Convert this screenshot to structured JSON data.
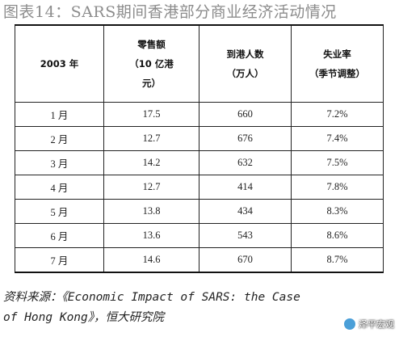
{
  "title": "图表14：SARS期间香港部分商业经济活动情况",
  "table": {
    "headers": {
      "col1": "2003 年",
      "col2": [
        "零售额",
        "（10 亿港",
        "元）"
      ],
      "col3": [
        "到港人数",
        "（万人）"
      ],
      "col4": [
        "失业率",
        "（季节调整）"
      ]
    },
    "rows": [
      {
        "month": "1 月",
        "retail": "17.5",
        "arrivals": "660",
        "unemployment": "7.2%"
      },
      {
        "month": "2 月",
        "retail": "12.7",
        "arrivals": "676",
        "unemployment": "7.4%"
      },
      {
        "month": "3 月",
        "retail": "14.2",
        "arrivals": "632",
        "unemployment": "7.5%"
      },
      {
        "month": "4 月",
        "retail": "12.7",
        "arrivals": "414",
        "unemployment": "7.8%"
      },
      {
        "month": "5 月",
        "retail": "13.8",
        "arrivals": "434",
        "unemployment": "8.3%"
      },
      {
        "month": "6 月",
        "retail": "13.6",
        "arrivals": "543",
        "unemployment": "8.6%"
      },
      {
        "month": "7 月",
        "retail": "14.6",
        "arrivals": "670",
        "unemployment": "8.7%"
      }
    ]
  },
  "source": {
    "line1": "资料来源：《Economic Impact of SARS: the Case",
    "line2": "of Hong Kong》，恒大研究院"
  },
  "watermark": {
    "text": "泽平宏观",
    "icon": "wechat-account-icon"
  }
}
